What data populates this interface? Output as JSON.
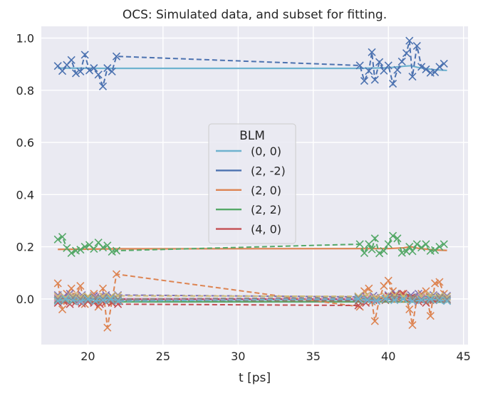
{
  "chart_data": {
    "type": "line",
    "title": "OCS: Simulated data, and subset for fitting.",
    "xlabel": "t [ps]",
    "ylabel": "",
    "xlim": [
      16.9,
      45.3
    ],
    "ylim": [
      -0.175,
      1.045
    ],
    "xticks": [
      20,
      25,
      30,
      35,
      40,
      45
    ],
    "yticks": [
      0.0,
      0.2,
      0.4,
      0.6,
      0.8,
      1.0
    ],
    "grid": true,
    "legend": {
      "title": "BLM",
      "placement": "center",
      "entries": [
        "(0, 0)",
        "(2, -2)",
        "(2, 0)",
        "(2, 2)",
        "(4, 0)"
      ]
    },
    "colors": {
      "c00": "#6fb3cf",
      "c2m2": "#4c72b0",
      "c20": "#dd8452",
      "c22": "#55a868",
      "c40": "#c44e52",
      "c4other": "#8172b3",
      "c_pink": "#da8bc3",
      "c_brown": "#937860",
      "c_olive": "#ccb974",
      "c_gray": "#8c8c8c"
    },
    "fit_lines": [
      {
        "name": "(0, 0)",
        "color": "#6fb3cf",
        "x": [
          18.0,
          21.0,
          22.0,
          38.0,
          40.0,
          41.0,
          41.5,
          42.0,
          43.0,
          43.9
        ],
        "y": [
          0.885,
          0.884,
          0.884,
          0.884,
          0.886,
          0.892,
          0.894,
          0.887,
          0.879,
          0.876
        ]
      },
      {
        "name": "(2, -2)",
        "color": "#4c72b0",
        "x": [
          18.0,
          22.0,
          38.0,
          43.9
        ],
        "y": [
          -0.002,
          -0.002,
          -0.002,
          -0.002
        ]
      },
      {
        "name": "(2, 0)",
        "color": "#dd8452",
        "x": [
          18.0,
          22.0,
          38.0,
          40.0,
          41.0,
          41.5,
          42.0,
          43.0,
          43.9
        ],
        "y": [
          0.19,
          0.192,
          0.193,
          0.193,
          0.196,
          0.2,
          0.194,
          0.188,
          0.186
        ]
      },
      {
        "name": "(2, 2)",
        "color": "#55a868",
        "x": [
          18.0,
          22.0,
          38.0,
          43.9
        ],
        "y": [
          -0.012,
          -0.011,
          -0.011,
          -0.012
        ]
      },
      {
        "name": "(4, 0)",
        "color": "#c44e52",
        "x": [
          18.0,
          22.0,
          38.0,
          40.0,
          40.8,
          41.5,
          42.2,
          43.0,
          43.9
        ],
        "y": [
          0.0,
          0.0,
          0.0,
          0.008,
          0.018,
          0.015,
          -0.002,
          -0.008,
          -0.008
        ]
      }
    ],
    "data_series": [
      {
        "color": "#4c72b0",
        "x": [
          18.0,
          18.3,
          18.6,
          18.9,
          19.2,
          19.5,
          19.8,
          20.1,
          20.4,
          20.7,
          21.0,
          21.3,
          21.6,
          21.9,
          38.1,
          38.4,
          38.7,
          38.9,
          39.1,
          39.4,
          39.7,
          40.0,
          40.3,
          40.6,
          40.9,
          41.2,
          41.4,
          41.6,
          41.9,
          42.2,
          42.5,
          42.8,
          43.1,
          43.4,
          43.7
        ],
        "y": [
          0.893,
          0.874,
          0.897,
          0.916,
          0.865,
          0.872,
          0.936,
          0.876,
          0.885,
          0.86,
          0.815,
          0.885,
          0.872,
          0.93,
          0.895,
          0.836,
          0.874,
          0.946,
          0.84,
          0.908,
          0.875,
          0.895,
          0.825,
          0.878,
          0.91,
          0.942,
          0.99,
          0.852,
          0.97,
          0.89,
          0.88,
          0.867,
          0.869,
          0.89,
          0.902
        ]
      },
      {
        "color": "#55a868",
        "x": [
          18.0,
          18.3,
          18.6,
          18.9,
          19.2,
          19.5,
          19.8,
          20.1,
          20.4,
          20.7,
          21.0,
          21.3,
          21.6,
          21.9,
          38.1,
          38.4,
          38.7,
          38.9,
          39.1,
          39.4,
          39.7,
          40.0,
          40.3,
          40.6,
          40.9,
          41.2,
          41.4,
          41.6,
          41.9,
          42.2,
          42.5,
          42.8,
          43.1,
          43.4,
          43.7
        ],
        "y": [
          0.228,
          0.238,
          0.195,
          0.176,
          0.185,
          0.189,
          0.2,
          0.207,
          0.192,
          0.216,
          0.197,
          0.205,
          0.181,
          0.185,
          0.21,
          0.176,
          0.21,
          0.19,
          0.232,
          0.175,
          0.184,
          0.21,
          0.242,
          0.232,
          0.177,
          0.182,
          0.2,
          0.183,
          0.21,
          0.197,
          0.21,
          0.184,
          0.187,
          0.2,
          0.21
        ]
      },
      {
        "color": "#dd8452",
        "x": [
          18.0,
          18.3,
          18.6,
          18.9,
          19.2,
          19.5,
          19.8,
          20.1,
          20.4,
          20.7,
          21.0,
          21.3,
          21.6,
          21.9,
          38.1,
          38.4,
          38.7,
          38.9,
          39.1,
          39.4,
          39.7,
          40.0,
          40.3,
          40.6,
          40.9,
          41.2,
          41.4,
          41.6,
          41.9,
          42.2,
          42.5,
          42.8,
          43.1,
          43.4,
          43.7
        ],
        "y": [
          0.06,
          -0.04,
          0.02,
          0.04,
          0.01,
          0.05,
          -0.02,
          0.0,
          0.02,
          -0.03,
          0.04,
          -0.11,
          -0.01,
          0.095,
          -0.03,
          0.03,
          0.04,
          -0.01,
          -0.085,
          0.0,
          0.05,
          0.07,
          0.03,
          0.0,
          0.02,
          0.0,
          -0.04,
          -0.1,
          0.0,
          0.02,
          0.03,
          -0.065,
          0.06,
          0.065,
          0.02
        ]
      },
      {
        "color": "#8172b3",
        "x": [
          18.0,
          18.4,
          18.8,
          19.2,
          19.6,
          20.0,
          20.4,
          20.8,
          21.2,
          21.6,
          22.0,
          38.0,
          38.5,
          39.0,
          39.5,
          40.0,
          40.5,
          41.0,
          41.5,
          42.0,
          42.5,
          43.0,
          43.5,
          43.9
        ],
        "y": [
          0.015,
          0.01,
          0.02,
          0.005,
          0.015,
          0.01,
          0.012,
          0.008,
          0.015,
          0.01,
          0.015,
          0.008,
          0.01,
          0.012,
          0.005,
          0.015,
          0.02,
          0.01,
          0.015,
          0.02,
          0.01,
          0.015,
          0.01,
          0.012
        ]
      },
      {
        "color": "#c44e52",
        "x": [
          18.0,
          18.4,
          18.8,
          19.2,
          19.6,
          20.0,
          20.4,
          20.8,
          21.2,
          21.6,
          22.0,
          38.0,
          38.5,
          39.0,
          39.5,
          40.0,
          40.5,
          41.0,
          41.5,
          42.0,
          42.5,
          43.0,
          43.5,
          43.9
        ],
        "y": [
          -0.015,
          -0.01,
          -0.02,
          -0.012,
          -0.018,
          -0.01,
          -0.015,
          -0.02,
          -0.012,
          -0.015,
          -0.02,
          -0.025,
          -0.015,
          -0.005,
          0.0,
          0.01,
          0.015,
          0.02,
          0.005,
          -0.01,
          -0.015,
          -0.005,
          0.0,
          -0.005
        ]
      },
      {
        "color": "#da8bc3",
        "x": [
          18.0,
          18.5,
          19.0,
          19.5,
          20.0,
          20.5,
          21.0,
          21.5,
          22.0,
          38.0,
          38.6,
          39.2,
          39.8,
          40.4,
          41.0,
          41.6,
          42.2,
          42.8,
          43.4,
          43.9
        ],
        "y": [
          0.005,
          0.0,
          0.01,
          -0.005,
          0.0,
          0.008,
          -0.005,
          0.005,
          0.0,
          0.0,
          0.005,
          0.0,
          0.01,
          0.005,
          0.0,
          -0.005,
          0.005,
          0.0,
          0.005,
          0.0
        ]
      },
      {
        "color": "#937860",
        "x": [
          18.0,
          18.5,
          19.0,
          19.5,
          20.0,
          20.5,
          21.0,
          21.5,
          22.0,
          38.0,
          38.6,
          39.2,
          39.8,
          40.4,
          41.0,
          41.6,
          42.2,
          42.8,
          43.4,
          43.9
        ],
        "y": [
          -0.005,
          0.005,
          -0.008,
          0.0,
          0.005,
          -0.005,
          0.0,
          0.005,
          -0.005,
          -0.008,
          0.0,
          0.005,
          -0.005,
          0.0,
          0.005,
          0.0,
          -0.005,
          0.005,
          0.0,
          -0.005
        ]
      },
      {
        "color": "#ccb974",
        "x": [
          18.0,
          18.5,
          19.0,
          19.5,
          20.0,
          20.5,
          21.0,
          21.5,
          22.0,
          38.0,
          38.6,
          39.2,
          39.8,
          40.4,
          41.0,
          41.6,
          42.2,
          42.8,
          43.4,
          43.9
        ],
        "y": [
          0.01,
          0.005,
          0.012,
          0.008,
          0.01,
          0.005,
          0.01,
          0.008,
          0.012,
          0.01,
          0.015,
          0.005,
          0.01,
          0.015,
          0.01,
          0.005,
          0.012,
          0.015,
          0.01,
          0.008
        ]
      },
      {
        "color": "#8c8c8c",
        "x": [
          18.0,
          18.5,
          19.0,
          19.5,
          20.0,
          20.5,
          21.0,
          21.5,
          22.0,
          38.0,
          38.6,
          39.2,
          39.8,
          40.4,
          41.0,
          41.6,
          42.2,
          42.8,
          43.4,
          43.9
        ],
        "y": [
          0.0,
          -0.005,
          0.005,
          0.0,
          -0.005,
          0.005,
          0.0,
          -0.005,
          0.0,
          0.005,
          0.0,
          -0.005,
          0.0,
          0.005,
          0.0,
          0.005,
          0.0,
          -0.005,
          0.005,
          0.0
        ]
      },
      {
        "color": "#6fb3cf",
        "x": [
          18.0,
          18.5,
          19.0,
          19.5,
          20.0,
          20.5,
          21.0,
          21.5,
          22.0,
          38.0,
          38.6,
          39.2,
          39.8,
          40.4,
          41.0,
          41.6,
          42.2,
          42.8,
          43.4,
          43.9
        ],
        "y": [
          -0.008,
          0.0,
          -0.005,
          -0.01,
          0.0,
          -0.008,
          -0.005,
          0.0,
          -0.008,
          0.0,
          -0.005,
          -0.008,
          0.0,
          -0.005,
          0.0,
          -0.008,
          -0.005,
          0.0,
          -0.005,
          -0.008
        ]
      }
    ]
  }
}
